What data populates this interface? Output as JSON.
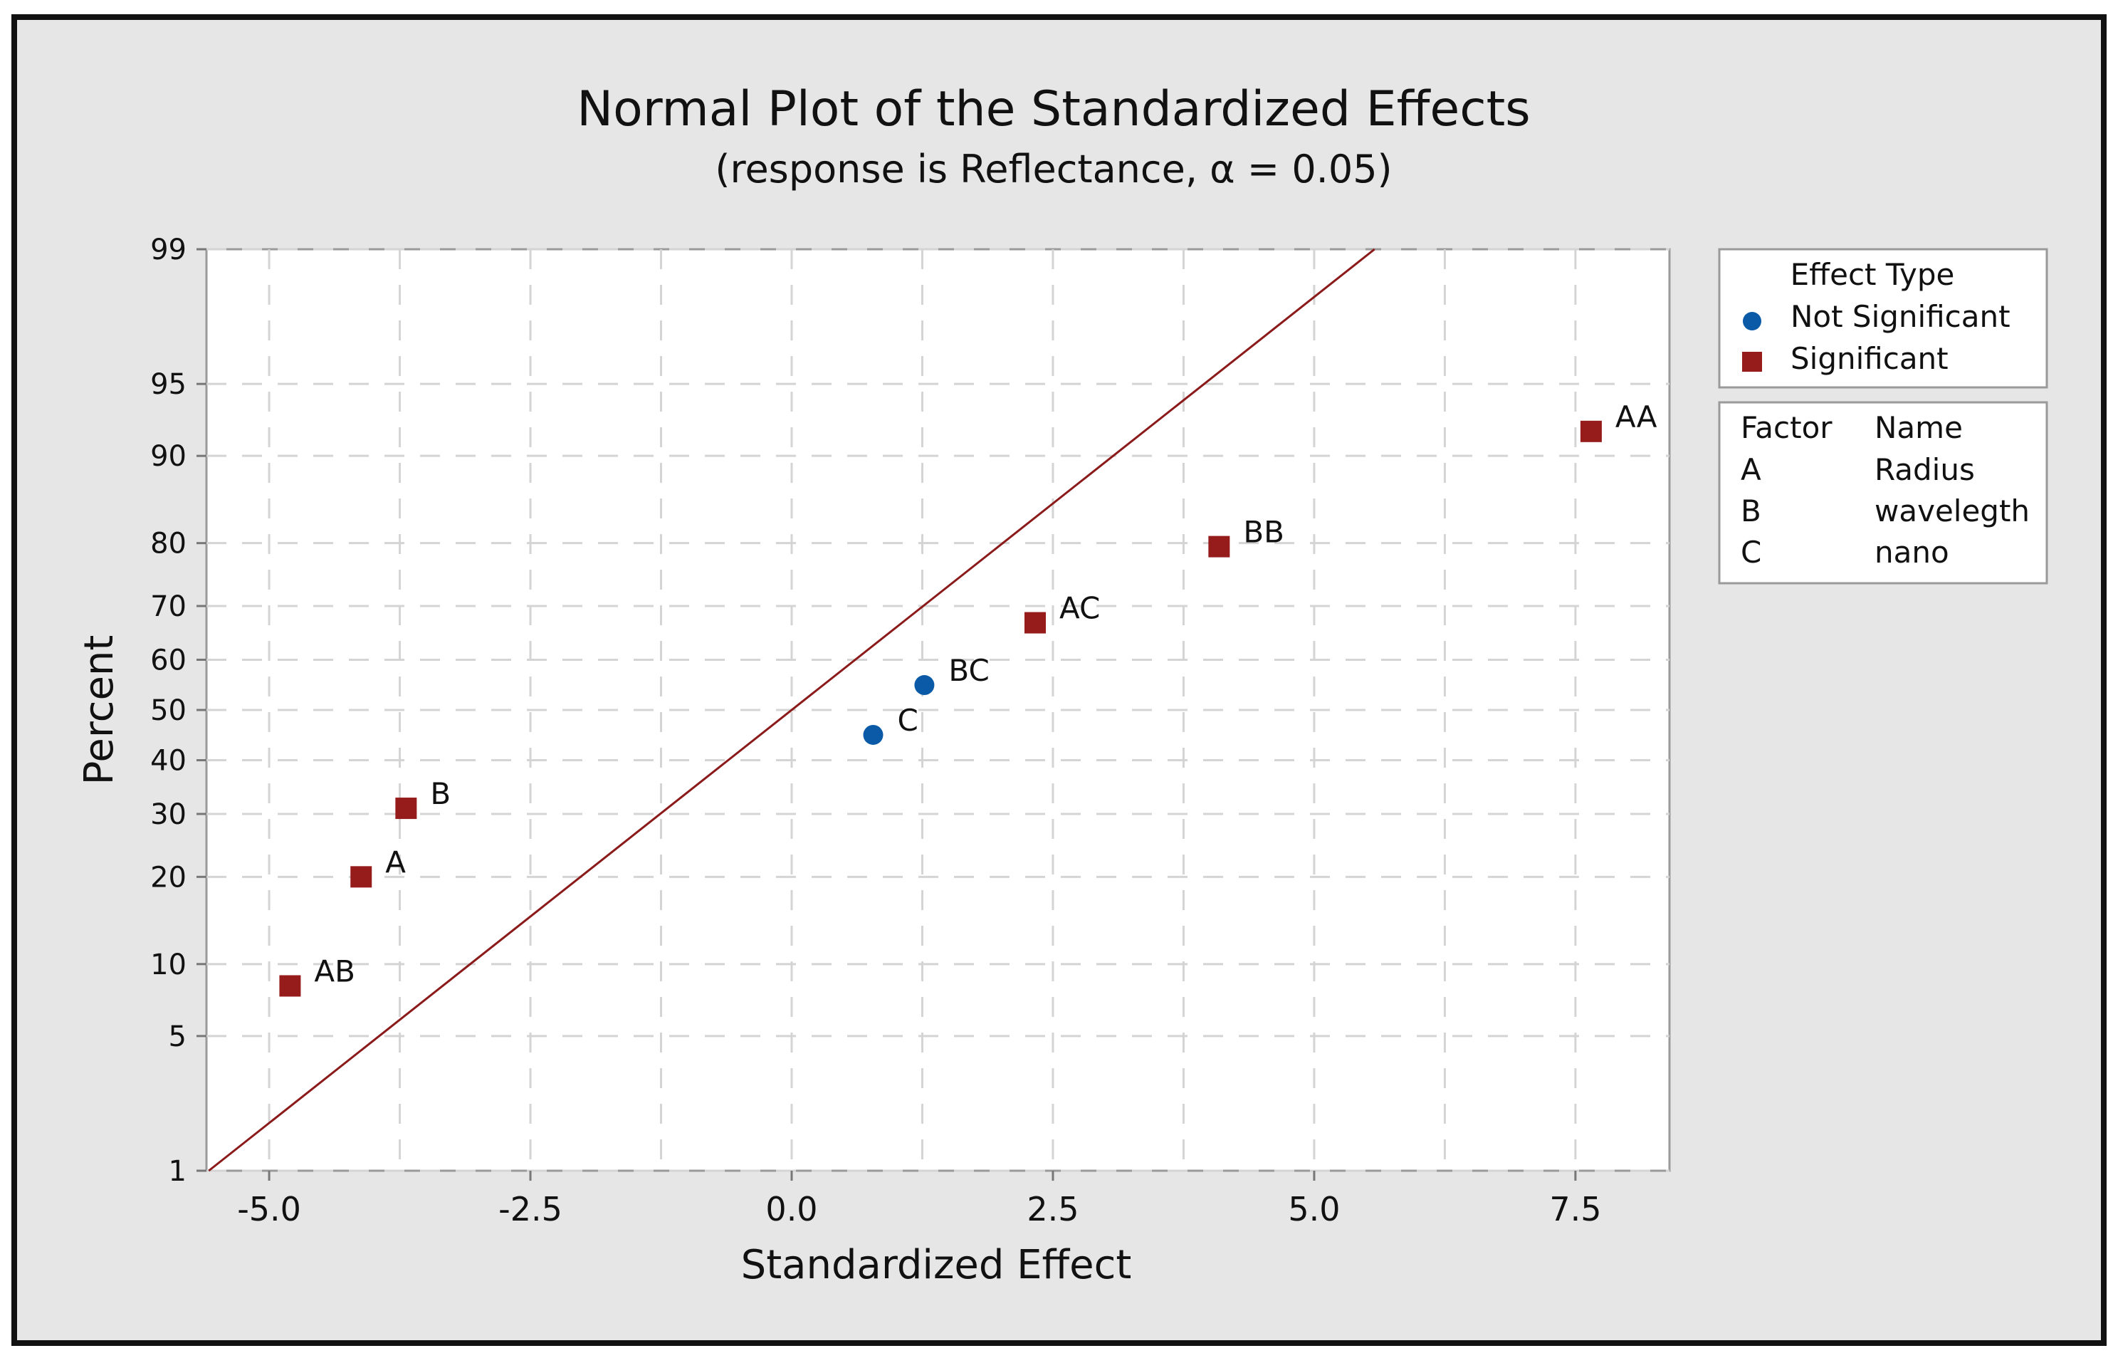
{
  "chart_data": {
    "type": "scatter",
    "title": "Normal Plot of the Standardized Effects",
    "subtitle": "(response is Reflectance, α = 0.05)",
    "xlabel": "Standardized Effect",
    "ylabel": "Percent",
    "xlim": [
      -5.6,
      8.4
    ],
    "x_ticks": [
      -5.0,
      -2.5,
      0.0,
      2.5,
      5.0,
      7.5
    ],
    "x_tick_labels": [
      "-5.0",
      "-2.5",
      "0.0",
      "2.5",
      "5.0",
      "7.5"
    ],
    "x_grid": [
      -5.0,
      -3.75,
      -2.5,
      -1.25,
      0.0,
      1.25,
      2.5,
      3.75,
      5.0,
      6.25,
      7.5
    ],
    "y_scale": "normal-probability",
    "y_ticks": [
      1,
      5,
      10,
      20,
      30,
      40,
      50,
      60,
      70,
      80,
      90,
      95,
      99
    ],
    "y_tick_labels": [
      "1",
      "5",
      "10",
      "20",
      "30",
      "40",
      "50",
      "60",
      "70",
      "80",
      "90",
      "95",
      "99"
    ],
    "grid": true,
    "reference_line": {
      "mean": 0.0,
      "sd": 2.4,
      "color": "#8b1a1a"
    },
    "series": [
      {
        "name": "Not Significant",
        "marker": "circle",
        "color": "#0b5aa8",
        "points": [
          {
            "label": "C",
            "x": 0.78,
            "y": 45
          },
          {
            "label": "BC",
            "x": 1.27,
            "y": 55
          }
        ]
      },
      {
        "name": "Significant",
        "marker": "square",
        "color": "#961b1b",
        "points": [
          {
            "label": "AB",
            "x": -4.8,
            "y": 8.2
          },
          {
            "label": "A",
            "x": -4.12,
            "y": 20
          },
          {
            "label": "B",
            "x": -3.69,
            "y": 31
          },
          {
            "label": "AC",
            "x": 2.33,
            "y": 67
          },
          {
            "label": "BB",
            "x": 4.09,
            "y": 79.5
          },
          {
            "label": "AA",
            "x": 7.65,
            "y": 92
          }
        ]
      }
    ],
    "legend": {
      "placement": "right",
      "effect_type": {
        "title": "Effect Type",
        "items": [
          {
            "label": "Not Significant",
            "marker": "circle",
            "color": "#0b5aa8"
          },
          {
            "label": "Significant",
            "marker": "square",
            "color": "#961b1b"
          }
        ]
      },
      "factors": {
        "headers": [
          "Factor",
          "Name"
        ],
        "rows": [
          {
            "factor": "A",
            "name": "Radius"
          },
          {
            "factor": "B",
            "name": "wavelegth"
          },
          {
            "factor": "C",
            "name": "nano"
          }
        ]
      }
    }
  }
}
